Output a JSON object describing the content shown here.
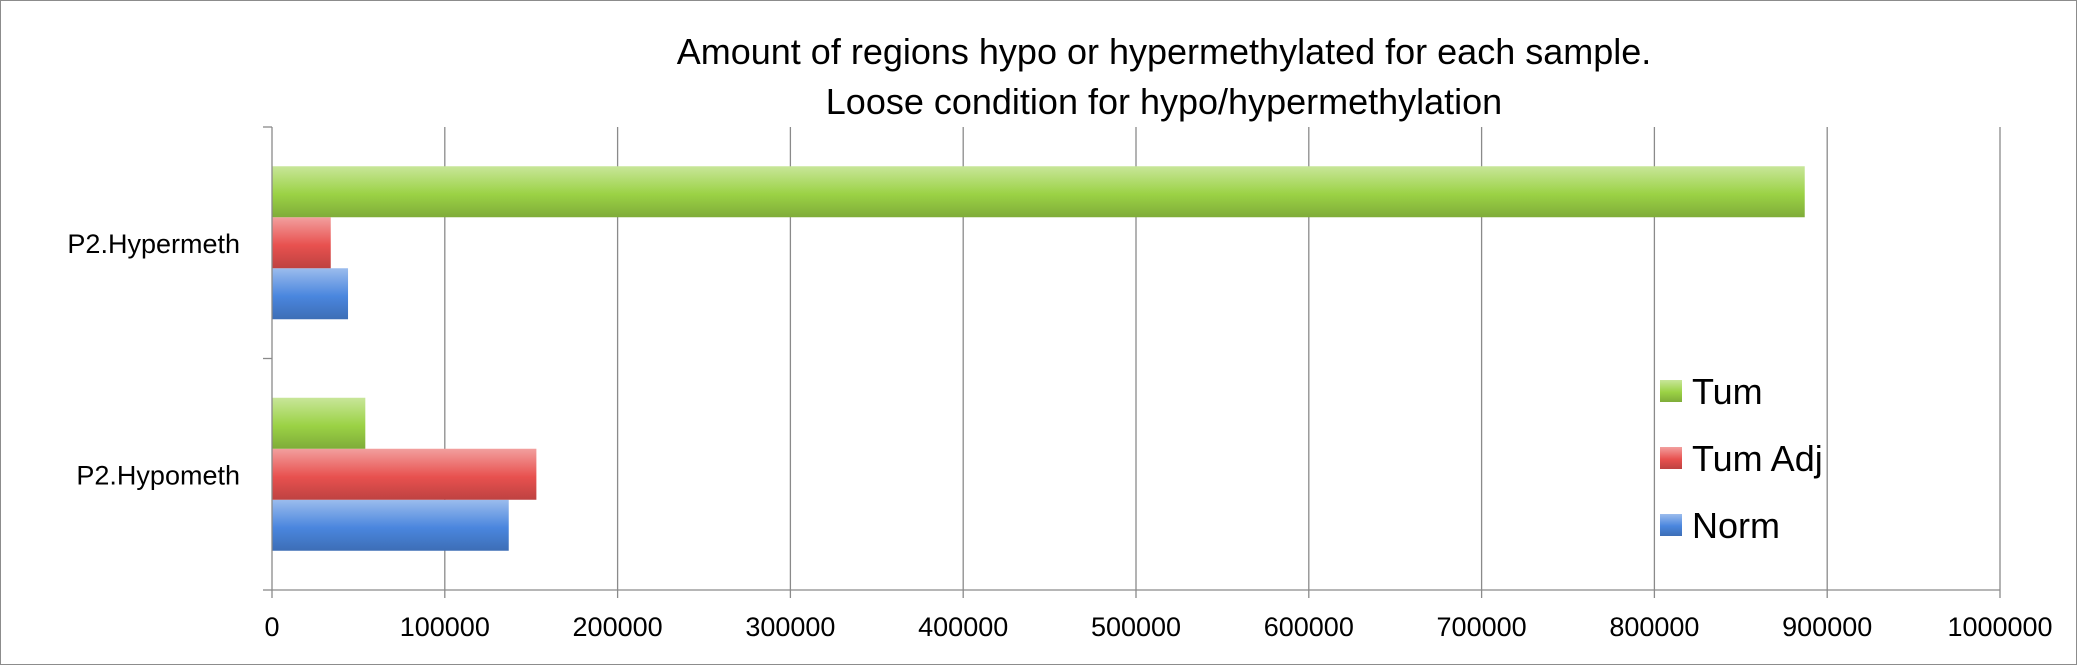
{
  "chart_data": {
    "type": "bar",
    "orientation": "horizontal",
    "title": "Amount of regions hypo or hypermethylated for each sample.",
    "subtitle": "Loose condition for hypo/hypermethylation",
    "xlabel": "",
    "ylabel": "",
    "categories": [
      "P2.Hypometh",
      "P2.Hypermeth"
    ],
    "series": [
      {
        "name": "Norm",
        "values": [
          137000,
          44000
        ],
        "color": "#4a86de"
      },
      {
        "name": "Tum Adj",
        "values": [
          153000,
          34000
        ],
        "color": "#e8514f"
      },
      {
        "name": "Tum",
        "values": [
          54000,
          887000
        ],
        "color": "#9bd245"
      }
    ],
    "xlim": [
      0,
      1000000
    ],
    "x_ticks": [
      "0",
      "100000",
      "200000",
      "300000",
      "400000",
      "500000",
      "600000",
      "700000",
      "800000",
      "900000",
      "1000000"
    ],
    "grid": true,
    "legend_position": "right",
    "legend_order": [
      "Tum",
      "Tum Adj",
      "Norm"
    ]
  }
}
